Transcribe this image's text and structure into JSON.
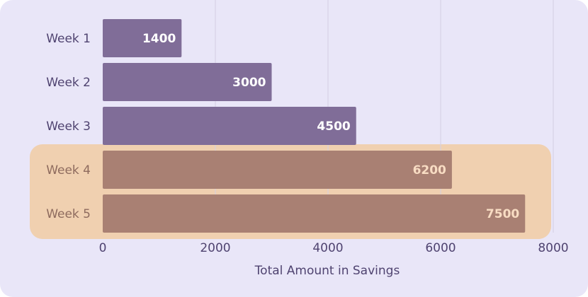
{
  "chart_data": {
    "type": "hbar",
    "x_label": "Total Amount in Savings",
    "categories": [
      "Week 1",
      "Week 2",
      "Week 3",
      "Week 4",
      "Week 5"
    ],
    "values": [
      1400,
      3000,
      4500,
      6200,
      7500
    ],
    "colors": [
      "#806d98",
      "#806d98",
      "#806d98",
      "#a98073",
      "#a98073"
    ],
    "highlight": [
      false,
      false,
      false,
      true,
      true
    ],
    "highlight_color": "#f0d0b0",
    "label_color": "#4f4370",
    "highlight_label_color": "#8e6b5e",
    "value_label_color": "#ffffff",
    "highlight_value_label_color": "#f8dcc3",
    "xlim": [
      0,
      8000
    ],
    "xticks": [
      0,
      2000,
      4000,
      6000,
      8000
    ],
    "grid": true
  }
}
